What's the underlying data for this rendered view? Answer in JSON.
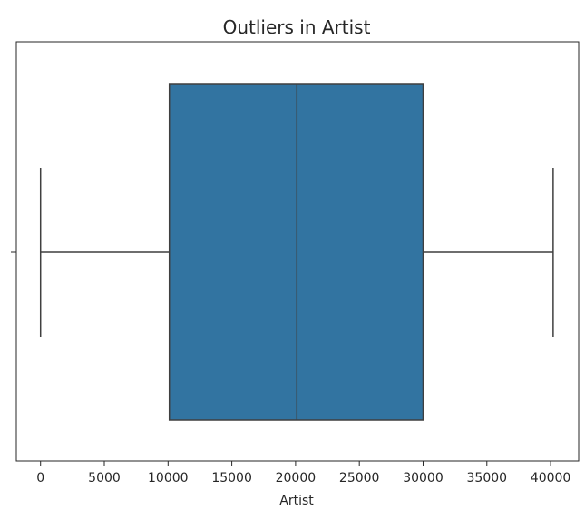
{
  "chart_data": {
    "type": "box",
    "title": "Outliers in Artist",
    "xlabel": "Artist",
    "ylabel": "",
    "xlim": [
      -1900,
      42200
    ],
    "xticks": [
      0,
      5000,
      10000,
      15000,
      20000,
      25000,
      30000,
      35000,
      40000
    ],
    "xtick_labels": [
      "0",
      "5000",
      "10000",
      "15000",
      "20000",
      "25000",
      "30000",
      "35000",
      "40000"
    ],
    "series": [
      {
        "min": 0,
        "q1": 10100,
        "median": 20100,
        "q3": 30000,
        "max": 40200,
        "outliers": []
      }
    ],
    "orientation": "horizontal",
    "grid": false,
    "legend": "none",
    "colors": {
      "box_fill": "#3274a1",
      "lines": "#3f3f3f",
      "frame": "#262626"
    }
  }
}
